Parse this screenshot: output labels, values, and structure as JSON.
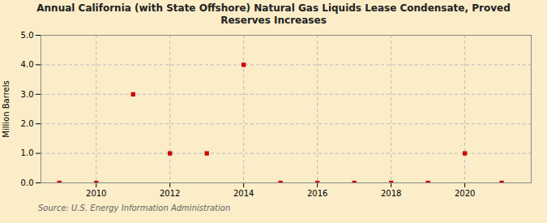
{
  "chart_data": {
    "type": "scatter",
    "title": "Annual California (with State Offshore) Natural Gas Liquids Lease Condensate, Proved\nReserves Increases",
    "ylabel": "Million Barrels",
    "annotations": [
      "Source: U.S. Energy Information Administration"
    ],
    "x": [
      2009,
      2010,
      2011,
      2012,
      2013,
      2014,
      2015,
      2016,
      2017,
      2018,
      2019,
      2020,
      2021
    ],
    "values": [
      0.0,
      0.0,
      3.0,
      1.0,
      1.0,
      4.0,
      0.0,
      0.0,
      0.0,
      0.0,
      0.0,
      1.0,
      0.0
    ],
    "color": "#cc0000",
    "marker": "square",
    "xlim": [
      2008.5,
      2021.8
    ],
    "xticks": [
      2010,
      2012,
      2014,
      2016,
      2018,
      2020
    ],
    "ylim": [
      0.0,
      5.0
    ],
    "yticks": [
      {
        "value": 0.0,
        "label": "0.0"
      },
      {
        "value": 1.0,
        "label": "1.0"
      },
      {
        "value": 2.0,
        "label": "2.0"
      },
      {
        "value": 3.0,
        "label": "3.0"
      },
      {
        "value": 4.0,
        "label": "4.0"
      },
      {
        "value": 5.0,
        "label": "5.0"
      }
    ],
    "grid": true
  }
}
